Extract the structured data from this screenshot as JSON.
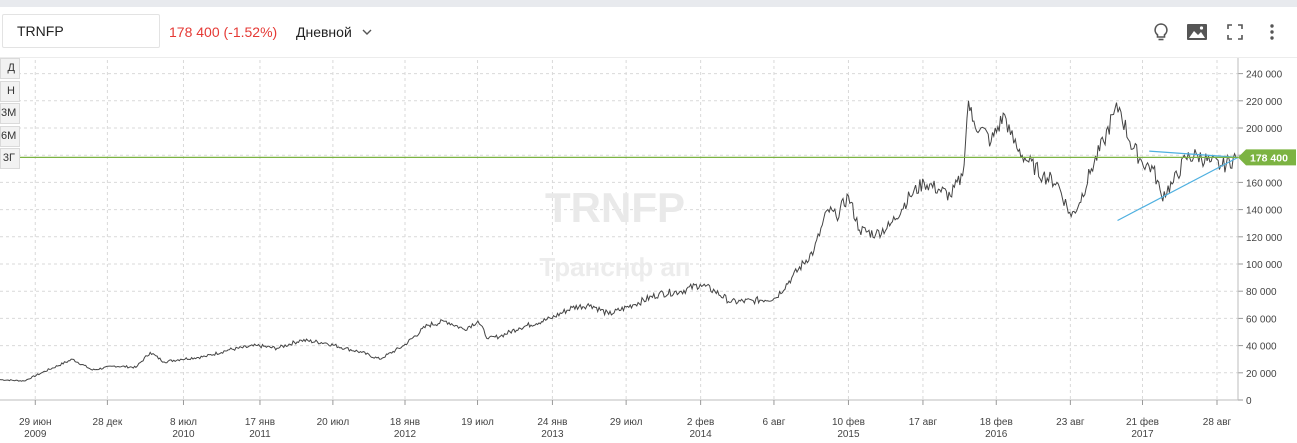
{
  "toolbar": {
    "ticker": "TRNFP",
    "price_change": "178 400 (-1.52%)",
    "period": "Дневной",
    "icons": [
      "lightbulb-icon",
      "image-icon",
      "fullscreen-icon",
      "more-vertical-icon"
    ]
  },
  "range_buttons": [
    "Д",
    "Н",
    "3М",
    "6М",
    "3Г"
  ],
  "colors": {
    "price_line": "#444444",
    "last_price": "#7cb342",
    "trend_line": "#4fb0e0",
    "change_negative": "#e53935"
  },
  "watermark": {
    "ticker": "TRNFP",
    "name": "Транснф ап"
  },
  "chart_data": {
    "type": "line",
    "title": "",
    "xlabel": "",
    "ylabel": "",
    "ylim": [
      0,
      250000
    ],
    "y_ticks": [
      {
        "value": 0,
        "label": "0"
      },
      {
        "value": 20000,
        "label": "20 000"
      },
      {
        "value": 40000,
        "label": "40 000"
      },
      {
        "value": 60000,
        "label": "60 000"
      },
      {
        "value": 80000,
        "label": "80 000"
      },
      {
        "value": 100000,
        "label": "100 000"
      },
      {
        "value": 120000,
        "label": "120 000"
      },
      {
        "value": 140000,
        "label": "140 000"
      },
      {
        "value": 160000,
        "label": "160 000"
      },
      {
        "value": 180000,
        "label": "180 000"
      },
      {
        "value": 200000,
        "label": "200 000"
      },
      {
        "value": 220000,
        "label": "220 000"
      },
      {
        "value": 240000,
        "label": "240 000"
      }
    ],
    "xlim": [
      "2009-04-01",
      "2017-10-20"
    ],
    "x_ticks": [
      {
        "date": "2009-06-29",
        "label": "29 июн",
        "year": "2009"
      },
      {
        "date": "2009-12-28",
        "label": "28 дек",
        "year": ""
      },
      {
        "date": "2010-07-08",
        "label": "8 июл",
        "year": "2010"
      },
      {
        "date": "2011-01-17",
        "label": "17 янв",
        "year": "2011"
      },
      {
        "date": "2011-07-20",
        "label": "20 июл",
        "year": ""
      },
      {
        "date": "2012-01-18",
        "label": "18 янв",
        "year": "2012"
      },
      {
        "date": "2012-07-19",
        "label": "19 июл",
        "year": ""
      },
      {
        "date": "2013-01-24",
        "label": "24 янв",
        "year": "2013"
      },
      {
        "date": "2013-07-29",
        "label": "29 июл",
        "year": ""
      },
      {
        "date": "2014-02-02",
        "label": "2 фев",
        "year": "2014"
      },
      {
        "date": "2014-08-06",
        "label": "6 авг",
        "year": ""
      },
      {
        "date": "2015-02-10",
        "label": "10 фев",
        "year": "2015"
      },
      {
        "date": "2015-08-17",
        "label": "17 авг",
        "year": ""
      },
      {
        "date": "2016-02-18",
        "label": "18 фев",
        "year": "2016"
      },
      {
        "date": "2016-08-23",
        "label": "23 авг",
        "year": ""
      },
      {
        "date": "2017-02-21",
        "label": "21 фев",
        "year": "2017"
      },
      {
        "date": "2017-08-28",
        "label": "28 авг",
        "year": ""
      }
    ],
    "series": [
      {
        "x": [
          "2009-04-01",
          "2009-06-01",
          "2009-07-15",
          "2009-10-01",
          "2009-11-20",
          "2010-01-15",
          "2010-03-10",
          "2010-04-15",
          "2010-05-20",
          "2010-07-01",
          "2010-09-01",
          "2010-11-01",
          "2011-01-10",
          "2011-03-01",
          "2011-05-01",
          "2011-07-01",
          "2011-08-20",
          "2011-10-01",
          "2011-11-15",
          "2012-01-15",
          "2012-03-15",
          "2012-05-01",
          "2012-06-15",
          "2012-07-20",
          "2012-08-15",
          "2012-09-15",
          "2012-11-01",
          "2013-01-20",
          "2013-03-15",
          "2013-05-01",
          "2013-06-15",
          "2013-08-15",
          "2013-10-20",
          "2013-12-15",
          "2014-02-01",
          "2014-03-10",
          "2014-04-20",
          "2014-06-15",
          "2014-08-10",
          "2014-09-20",
          "2014-11-15",
          "2014-12-20",
          "2015-01-10",
          "2015-02-10",
          "2015-03-10",
          "2015-04-20",
          "2015-05-25",
          "2015-07-15",
          "2015-08-20",
          "2015-09-25",
          "2015-10-25",
          "2015-11-25",
          "2015-12-10",
          "2015-12-20",
          "2016-01-10",
          "2016-02-05",
          "2016-03-10",
          "2016-03-25",
          "2016-04-10",
          "2016-05-10",
          "2016-06-15",
          "2016-07-20",
          "2016-08-25",
          "2016-09-15",
          "2016-10-15",
          "2016-11-15",
          "2016-12-10",
          "2016-12-25",
          "2017-01-20",
          "2017-02-20",
          "2017-03-20",
          "2017-04-10",
          "2017-05-10",
          "2017-06-10",
          "2017-07-10",
          "2017-08-10",
          "2017-09-10",
          "2017-10-15"
        ],
        "values": [
          15000,
          14000,
          20000,
          30000,
          22000,
          25000,
          24000,
          35000,
          28000,
          30000,
          32000,
          37000,
          40000,
          38000,
          44000,
          42000,
          38000,
          35000,
          30000,
          40000,
          55000,
          58000,
          52000,
          58000,
          45000,
          47000,
          53000,
          60000,
          68000,
          70000,
          63000,
          70000,
          78000,
          80000,
          85000,
          80000,
          72000,
          73000,
          75000,
          90000,
          110000,
          140000,
          135000,
          150000,
          125000,
          122000,
          128000,
          150000,
          160000,
          155000,
          150000,
          165000,
          220000,
          205000,
          200000,
          190000,
          210000,
          195000,
          185000,
          175000,
          165000,
          160000,
          135000,
          145000,
          170000,
          190000,
          210000,
          215000,
          190000,
          175000,
          170000,
          150000,
          160000,
          178000,
          180000,
          175000,
          172000,
          178400
        ]
      }
    ],
    "last_price": {
      "value": 178400,
      "label": "178 400"
    },
    "trend_lines": [
      {
        "from": [
          "2017-03-10",
          183000
        ],
        "to": [
          "2017-10-20",
          178400
        ]
      },
      {
        "from": [
          "2016-12-20",
          132000
        ],
        "to": [
          "2017-10-20",
          178400
        ]
      }
    ]
  }
}
